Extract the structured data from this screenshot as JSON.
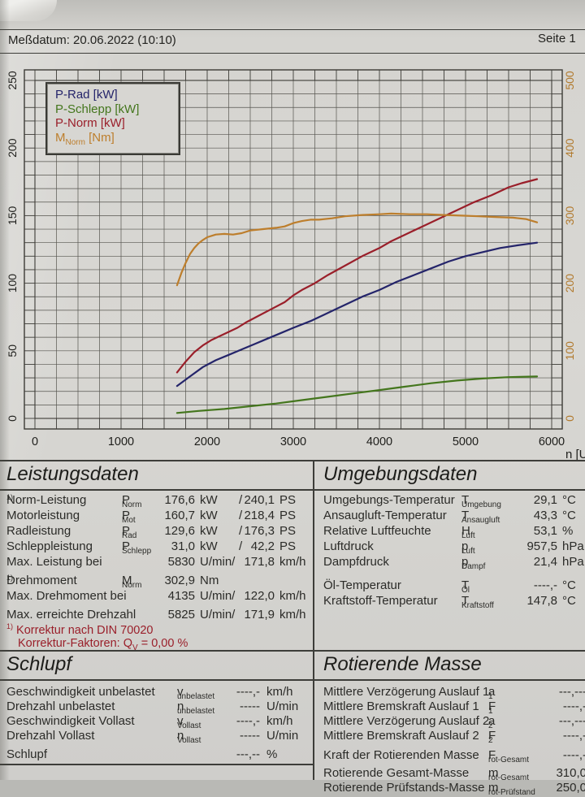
{
  "header": {
    "messdatum": "Meßdatum: 20.06.2022 (10:10)",
    "seite": "Seite 1"
  },
  "chart": {
    "legend": [
      {
        "pre": "P-Rad [kW]"
      },
      {
        "pre": "P-Schlepp [kW]"
      },
      {
        "pre": "P-Norm [kW]"
      },
      {
        "pre": "M",
        "sub": "Norm",
        "post": " [Nm]"
      }
    ],
    "x_axis_label": "n [U/min]"
  },
  "chart_data": {
    "type": "line",
    "x_range": [
      0,
      6000
    ],
    "y_left_range": [
      0,
      250
    ],
    "y_right_range": [
      0,
      500
    ],
    "x_ticks": [
      0,
      1000,
      2000,
      3000,
      4000,
      5000,
      6000
    ],
    "y_left_ticks": [
      0,
      50,
      100,
      150,
      200,
      250
    ],
    "y_right_ticks": [
      0,
      100,
      200,
      300,
      400,
      500
    ],
    "grid_step_x": 250,
    "grid_step_y_left": 10,
    "x_unit": "U/min",
    "legend_position": "top-left",
    "grid": true,
    "series": [
      {
        "name": "P-Rad [kW]",
        "axis": "left",
        "color": "#24246a",
        "points": [
          [
            1650,
            24
          ],
          [
            1800,
            31
          ],
          [
            1950,
            38
          ],
          [
            2100,
            43
          ],
          [
            2250,
            47
          ],
          [
            2400,
            51
          ],
          [
            2550,
            55
          ],
          [
            2700,
            59
          ],
          [
            2850,
            63
          ],
          [
            3000,
            67
          ],
          [
            3200,
            72
          ],
          [
            3400,
            78
          ],
          [
            3600,
            84
          ],
          [
            3800,
            90
          ],
          [
            4000,
            95
          ],
          [
            4200,
            101
          ],
          [
            4400,
            106
          ],
          [
            4600,
            111
          ],
          [
            4800,
            116
          ],
          [
            5000,
            120
          ],
          [
            5200,
            123
          ],
          [
            5400,
            126
          ],
          [
            5600,
            128
          ],
          [
            5830,
            130
          ]
        ]
      },
      {
        "name": "P-Schlepp [kW]",
        "axis": "left",
        "color": "#44761d",
        "points": [
          [
            1650,
            4
          ],
          [
            1900,
            5.5
          ],
          [
            2200,
            7
          ],
          [
            2500,
            9
          ],
          [
            2800,
            11
          ],
          [
            3100,
            13.5
          ],
          [
            3400,
            16
          ],
          [
            3700,
            18.5
          ],
          [
            4000,
            21
          ],
          [
            4300,
            23.5
          ],
          [
            4600,
            26
          ],
          [
            4900,
            28
          ],
          [
            5200,
            29.5
          ],
          [
            5500,
            30.5
          ],
          [
            5830,
            31
          ]
        ]
      },
      {
        "name": "P-Norm [kW]",
        "axis": "left",
        "color": "#9a1f2a",
        "points": [
          [
            1650,
            34
          ],
          [
            1750,
            42
          ],
          [
            1850,
            49
          ],
          [
            1950,
            54
          ],
          [
            2050,
            58
          ],
          [
            2150,
            61
          ],
          [
            2250,
            64
          ],
          [
            2350,
            67
          ],
          [
            2450,
            71
          ],
          [
            2600,
            76
          ],
          [
            2750,
            81
          ],
          [
            2900,
            86
          ],
          [
            3000,
            91
          ],
          [
            3100,
            95
          ],
          [
            3250,
            100
          ],
          [
            3400,
            106
          ],
          [
            3600,
            113
          ],
          [
            3800,
            120
          ],
          [
            4000,
            126
          ],
          [
            4135,
            131
          ],
          [
            4300,
            136
          ],
          [
            4500,
            142
          ],
          [
            4700,
            148
          ],
          [
            4900,
            154
          ],
          [
            5100,
            160
          ],
          [
            5300,
            165
          ],
          [
            5500,
            171
          ],
          [
            5650,
            174
          ],
          [
            5830,
            177
          ]
        ]
      },
      {
        "name": "M-Norm [Nm]",
        "axis": "right",
        "color": "#bd7e2c",
        "points": [
          [
            1650,
            197
          ],
          [
            1700,
            215
          ],
          [
            1750,
            230
          ],
          [
            1800,
            243
          ],
          [
            1850,
            252
          ],
          [
            1900,
            259
          ],
          [
            1950,
            264
          ],
          [
            2000,
            268
          ],
          [
            2100,
            272
          ],
          [
            2200,
            273
          ],
          [
            2300,
            272
          ],
          [
            2400,
            274
          ],
          [
            2500,
            278
          ],
          [
            2650,
            280
          ],
          [
            2800,
            282
          ],
          [
            2900,
            284
          ],
          [
            3000,
            289
          ],
          [
            3100,
            292
          ],
          [
            3200,
            294
          ],
          [
            3300,
            294
          ],
          [
            3450,
            296
          ],
          [
            3600,
            299
          ],
          [
            3800,
            301
          ],
          [
            4000,
            302
          ],
          [
            4135,
            303
          ],
          [
            4350,
            302
          ],
          [
            4550,
            302
          ],
          [
            4750,
            301
          ],
          [
            4950,
            300
          ],
          [
            5150,
            299
          ],
          [
            5350,
            298
          ],
          [
            5550,
            297
          ],
          [
            5700,
            295
          ],
          [
            5830,
            290
          ]
        ]
      }
    ]
  },
  "leistung": {
    "title": "Leistungsdaten",
    "rows": [
      {
        "label": "Norm-Leistung",
        "sup": "1)",
        "sym": "P",
        "sub": "Norm",
        "v1": "176,6",
        "u1": "kW",
        "sep": "/",
        "v2": "240,1",
        "u2": "PS"
      },
      {
        "label": "Motorleistung",
        "sym": "P",
        "sub": "Mot",
        "v1": "160,7",
        "u1": "kW",
        "sep": "/",
        "v2": "218,4",
        "u2": "PS"
      },
      {
        "label": "Radleistung",
        "sym": "P",
        "sub": "Rad",
        "v1": "129,6",
        "u1": "kW",
        "sep": "/",
        "v2": "176,3",
        "u2": "PS"
      },
      {
        "label": "Schleppleistung",
        "sym": "P",
        "sub": "Schlepp",
        "v1": "31,0",
        "u1": "kW",
        "sep": "/",
        "v2": "42,2",
        "u2": "PS"
      },
      {
        "label": "Max. Leistung bei",
        "v1": "5830",
        "u1": "U/min/",
        "v2": "171,8",
        "u2": "km/h"
      },
      {
        "label": "Drehmoment",
        "sup": "1)",
        "sym": "M",
        "sub": "Norm",
        "v1": "302,9",
        "u1": "Nm"
      },
      {
        "label": "Max. Drehmoment bei",
        "v1": "4135",
        "u1": "U/min/",
        "v2": "122,0",
        "u2": "km/h"
      },
      {
        "label": "Max. erreichte Drehzahl",
        "v1": "5825",
        "u1": "U/min/",
        "v2": "171,9",
        "u2": "km/h"
      }
    ],
    "fn1_marker": "1)",
    "fn1": "Korrektur nach DIN 70020",
    "fn2_pre": "Korrektur-Faktoren: Q",
    "fn2_sub": "V",
    "fn2_post": " =  0,00 %"
  },
  "umgebung": {
    "title": "Umgebungsdaten",
    "rows": [
      {
        "label": "Umgebungs-Temperatur",
        "sym": "T",
        "sub": "Umgebung",
        "v": "29,1",
        "u": "°C"
      },
      {
        "label": "Ansaugluft-Temperatur",
        "sym": "T",
        "sub": "Ansaugluft",
        "v": "43,3",
        "u": "°C"
      },
      {
        "label": "Relative Luftfeuchte",
        "sym": "H",
        "sub": "Luft",
        "v": "53,1",
        "u": "%"
      },
      {
        "label": "Luftdruck",
        "sym": "p",
        "sub": "Luft",
        "v": "957,5",
        "u": "hPa"
      },
      {
        "label": "Dampfdruck",
        "sym": "p",
        "sub": "Dampf",
        "v": "21,4",
        "u": "hPa"
      },
      {
        "label": "Öl-Temperatur",
        "sym": "T",
        "sub": "Öl",
        "v": "----,-",
        "u": "°C"
      },
      {
        "label": "Kraftstoff-Temperatur",
        "sym": "T",
        "sub": "Kraftstoff",
        "v": "147,8",
        "u": "°C"
      }
    ]
  },
  "schlupf": {
    "title": "Schlupf",
    "rows": [
      {
        "label": "Geschwindigkeit unbelastet",
        "sym": "v",
        "sub": "unbelastet",
        "v": "----,-",
        "u": "km/h"
      },
      {
        "label": "Drehzahl unbelastet",
        "sym": "n",
        "sub": "unbelastet",
        "v": "-----",
        "u": "U/min"
      },
      {
        "label": "Geschwindigkeit Vollast",
        "sym": "v",
        "sub": "Vollast",
        "v": "----,-",
        "u": "km/h"
      },
      {
        "label": "Drehzahl Vollast",
        "sym": "n",
        "sub": "Vollast",
        "v": "-----",
        "u": "U/min"
      },
      {
        "label": "Schlupf",
        "v": "---,--",
        "u": "%"
      }
    ]
  },
  "rotmasse": {
    "title": "Rotierende Masse",
    "rows": [
      {
        "label": "Mittlere Verzögerung Auslauf 1",
        "sym": "a",
        "sub": "1",
        "v": "---,---"
      },
      {
        "label": "Mittlere Bremskraft Auslauf 1",
        "sym": "F",
        "sub": "1",
        "v": "----,-"
      },
      {
        "label": "Mittlere Verzögerung Auslauf 2",
        "sym": "a",
        "sub": "2",
        "v": "---,---"
      },
      {
        "label": "Mittlere Bremskraft Auslauf 2",
        "sym": "F",
        "sub": "2",
        "v": "----,-"
      },
      {
        "label": "Kraft der Rotierenden Masse",
        "sym": "F",
        "sub": "rot-Gesamt",
        "v": "----,-"
      },
      {
        "label": "Rotierende Gesamt-Masse",
        "sym": "m",
        "sub": "rot-Gesamt",
        "v": "310,0"
      },
      {
        "label": "Rotierende Prüfstands-Masse",
        "sym": "m",
        "sub": "rot-Prüfstand",
        "v": "250,0"
      }
    ]
  }
}
